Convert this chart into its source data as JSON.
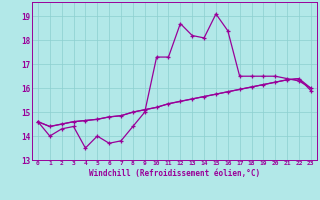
{
  "xlabel": "Windchill (Refroidissement éolien,°C)",
  "background_color": "#b2e8e8",
  "grid_color": "#8ccfcf",
  "line_color": "#990099",
  "xlim": [
    -0.5,
    23.5
  ],
  "ylim": [
    13.0,
    19.6
  ],
  "yticks": [
    13,
    14,
    15,
    16,
    17,
    18,
    19
  ],
  "xticks": [
    0,
    1,
    2,
    3,
    4,
    5,
    6,
    7,
    8,
    9,
    10,
    11,
    12,
    13,
    14,
    15,
    16,
    17,
    18,
    19,
    20,
    21,
    22,
    23
  ],
  "series1": [
    14.6,
    14.0,
    14.3,
    14.4,
    13.5,
    14.0,
    13.7,
    13.8,
    14.4,
    15.0,
    17.3,
    17.3,
    18.7,
    18.2,
    18.1,
    19.1,
    18.4,
    16.5,
    16.5,
    16.5,
    16.5,
    16.4,
    16.3,
    16.0
  ],
  "series2": [
    14.6,
    14.4,
    14.5,
    14.6,
    14.65,
    14.7,
    14.8,
    14.85,
    15.0,
    15.1,
    15.2,
    15.35,
    15.45,
    15.55,
    15.65,
    15.75,
    15.85,
    15.95,
    16.05,
    16.15,
    16.25,
    16.35,
    16.4,
    15.9
  ],
  "series3": [
    14.6,
    14.4,
    14.5,
    14.6,
    14.65,
    14.7,
    14.8,
    14.85,
    15.0,
    15.1,
    15.2,
    15.35,
    15.45,
    15.55,
    15.65,
    15.75,
    15.85,
    15.95,
    16.05,
    16.15,
    16.25,
    16.35,
    16.4,
    16.0
  ],
  "figwidth": 3.2,
  "figheight": 2.0,
  "dpi": 100
}
